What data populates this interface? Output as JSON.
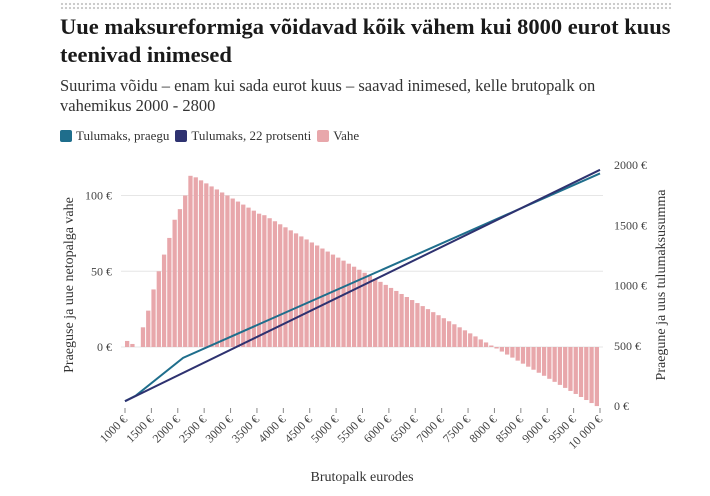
{
  "header": {
    "title": "Uue maksureformiga võidavad kõik vähem kui 8000 eurot kuus teenivad inimesed",
    "subtitle": "Suurima võidu – enam kui sada eurot kuus – saavad inimesed, kelle brutopalk on vahemikus 2000 - 2800"
  },
  "legend": [
    {
      "label": "Tulumaks, praegu",
      "color": "#1f6e8c"
    },
    {
      "label": "Tulumaks, 22 protsenti",
      "color": "#2e3270"
    },
    {
      "label": "Vahe",
      "color": "#e8a7ab"
    }
  ],
  "chart_data": {
    "type": "bar+line",
    "xlabel": "Brutopalk eurodes",
    "ylabel_left": "Praeguse ja uue netopalga vahe",
    "ylabel_right": "Praegune ja uus tulumaksusumma",
    "x_ticks": [
      "1000 €",
      "1500 €",
      "2000 €",
      "2500 €",
      "3000 €",
      "3500 €",
      "4000 €",
      "4500 €",
      "5000 €",
      "5500 €",
      "6000 €",
      "6500 €",
      "7000 €",
      "7500 €",
      "8000 €",
      "8500 €",
      "9000 €",
      "9500 €",
      "10 000 €"
    ],
    "y_left_ticks": [
      {
        "v": 0,
        "label": "0 €"
      },
      {
        "v": 50,
        "label": "50 €"
      },
      {
        "v": 100,
        "label": "100 €"
      }
    ],
    "y_right_ticks": [
      {
        "v": 0,
        "label": "0 €"
      },
      {
        "v": 500,
        "label": "500 €"
      },
      {
        "v": 1000,
        "label": "1000 €"
      },
      {
        "v": 1500,
        "label": "1500 €"
      },
      {
        "v": 2000,
        "label": "2000 €"
      }
    ],
    "x_range": [
      1000,
      10000
    ],
    "y_left_range": [
      -40,
      120
    ],
    "y_right_range": [
      0,
      2000
    ],
    "vahe_series": {
      "name": "Vahe",
      "x_start": 1000,
      "x_step": 100,
      "values": [
        4,
        2,
        0,
        13,
        24,
        38,
        50,
        61,
        72,
        84,
        91,
        100,
        113,
        112,
        110,
        108,
        106,
        104,
        102,
        100,
        98,
        96,
        94,
        92,
        90,
        88,
        87,
        85,
        83,
        81,
        79,
        77,
        75,
        73,
        71,
        69,
        67,
        65,
        63,
        61,
        59,
        57,
        55,
        53,
        51,
        49,
        47,
        45,
        43,
        41,
        39,
        37,
        35,
        33,
        31,
        29,
        27,
        25,
        23,
        21,
        19,
        17,
        15,
        13,
        11,
        9,
        7,
        5,
        3,
        1,
        -1,
        -3,
        -5,
        -7,
        -9,
        -11,
        -13,
        -15,
        -17,
        -19,
        -21,
        -23,
        -25,
        -27,
        -29,
        -31,
        -33,
        -35,
        -37,
        -39
      ]
    },
    "series": [
      {
        "name": "Tulumaks, praegu",
        "color": "#1f6e8c",
        "x": [
          1000,
          1200,
          2100,
          10000
        ],
        "y": [
          40,
          85,
          400,
          1930
        ]
      },
      {
        "name": "Tulumaks, 22 protsenti",
        "color": "#2e3270",
        "x": [
          1000,
          10000
        ],
        "y": [
          40,
          1960
        ]
      }
    ]
  }
}
